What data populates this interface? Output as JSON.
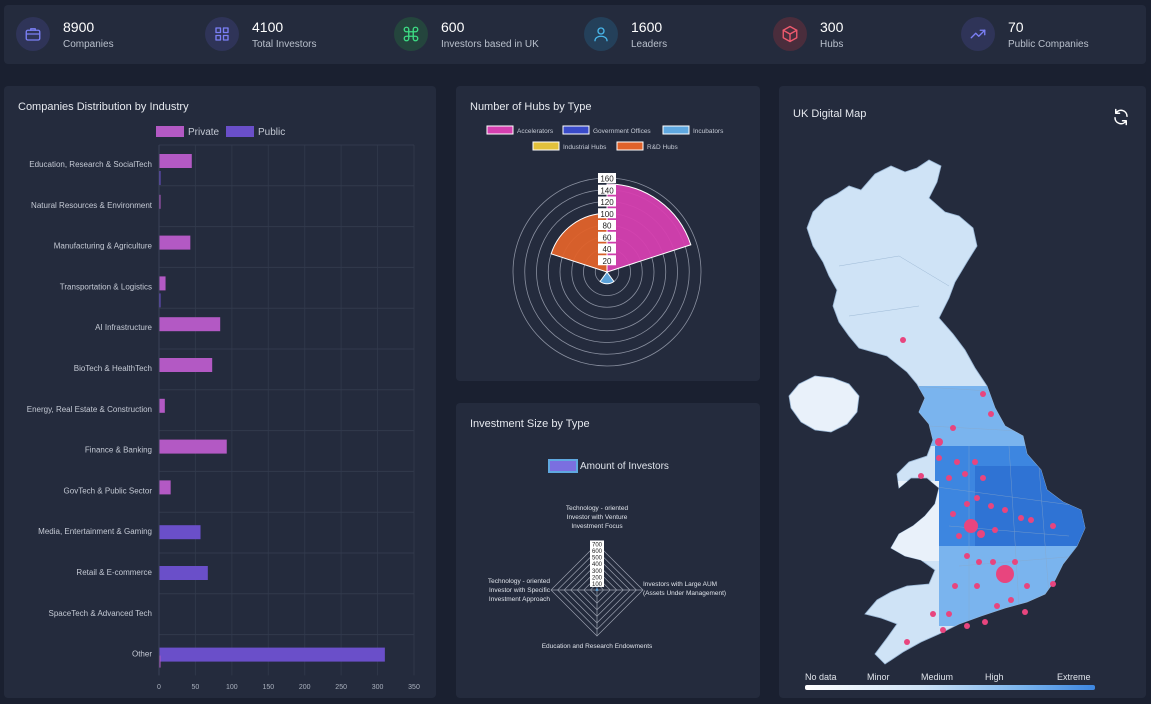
{
  "stats": [
    {
      "value": "8900",
      "label": "Companies",
      "icon": "briefcase-icon",
      "color": "#7b7ff5",
      "bg": "#2f3458"
    },
    {
      "value": "4100",
      "label": "Total Investors",
      "icon": "grid-icon",
      "color": "#7b7ff5",
      "bg": "#2f3458"
    },
    {
      "value": "600",
      "label": "Investors based in UK",
      "icon": "command-icon",
      "color": "#3ddc84",
      "bg": "#24453d"
    },
    {
      "value": "1600",
      "label": "Leaders",
      "icon": "user-icon",
      "color": "#48b6ea",
      "bg": "#24405a"
    },
    {
      "value": "300",
      "label": "Hubs",
      "icon": "box-icon",
      "color": "#f05a6e",
      "bg": "#4a2d3c"
    },
    {
      "value": "70",
      "label": "Public Companies",
      "icon": "trending-up-icon",
      "color": "#7b7ff5",
      "bg": "#2f3458"
    }
  ],
  "industry_panel": {
    "title": "Companies Distribution by Industry"
  },
  "hubs_panel": {
    "title": "Number of Hubs by Type"
  },
  "invest_panel": {
    "title": "Investment Size by Type"
  },
  "map_panel": {
    "title": "UK Digital Map",
    "legend": [
      "No data",
      "Minor",
      "Medium",
      "High",
      "Extreme"
    ]
  },
  "chart_data": [
    {
      "type": "bar",
      "orientation": "horizontal",
      "categories": [
        "Education, Research & SocialTech",
        "Natural Resources & Environment",
        "Manufacturing & Agriculture",
        "Transportation & Logistics",
        "AI Infrastructure",
        "BioTech & HealthTech",
        "Energy, Real Estate & Construction",
        "Finance & Banking",
        "GovTech & Public Sector",
        "Media, Entertainment & Gaming",
        "Retail & E-commerce",
        "SpaceTech & Advanced Tech",
        "Other"
      ],
      "series": [
        {
          "name": "Private",
          "color": "#b359c4",
          "values": [
            45,
            1,
            43,
            9,
            84,
            73,
            8,
            93,
            16,
            0,
            0,
            0,
            0
          ]
        },
        {
          "name": "Public",
          "color": "#6a4fc9",
          "values": [
            1,
            0,
            0,
            1,
            0,
            0,
            0,
            0,
            0,
            57,
            67,
            0,
            310
          ]
        },
        {
          "name": "",
          "color": "#b359c4",
          "values": [
            0,
            0,
            0,
            0,
            0,
            0,
            0,
            0,
            0,
            0,
            0,
            0,
            2
          ]
        }
      ],
      "x_ticks": [
        "0",
        "50",
        "100",
        "150",
        "200",
        "250",
        "300",
        "350"
      ],
      "xlim": [
        0,
        350
      ],
      "legend": "top-center",
      "grid": true
    },
    {
      "type": "polar-area",
      "series": [
        {
          "name": "Accelerators",
          "value": 150,
          "color": "#d63fb0"
        },
        {
          "name": "Government Offices",
          "value": 0,
          "color": "#3a4bc9"
        },
        {
          "name": "Incubators",
          "value": 20,
          "color": "#5fa8e0"
        },
        {
          "name": "Industrial Hubs",
          "value": 0,
          "color": "#e2c13b"
        },
        {
          "name": "R&D Hubs",
          "value": 100,
          "color": "#e0622a"
        }
      ],
      "r_ticks": [
        "20",
        "40",
        "60",
        "80",
        "100",
        "120",
        "140",
        "160"
      ],
      "rlim": [
        0,
        160
      ],
      "legend": "top"
    },
    {
      "type": "radar",
      "axes": [
        "Technology - oriented Investor with Venture Investment Focus",
        "Investors with Large AUM (Assets Under Management)",
        "Education and Research Endowments",
        "Technology - oriented Investor with Specific Investment Approach"
      ],
      "series": [
        {
          "name": "Amount of Investors",
          "color": "#7b6fe0",
          "values": [
            10,
            5,
            0,
            5
          ]
        }
      ],
      "r_ticks": [
        "0",
        "100",
        "200",
        "300",
        "400",
        "500",
        "600",
        "700"
      ],
      "rlim": [
        0,
        700
      ],
      "legend": "top"
    }
  ]
}
